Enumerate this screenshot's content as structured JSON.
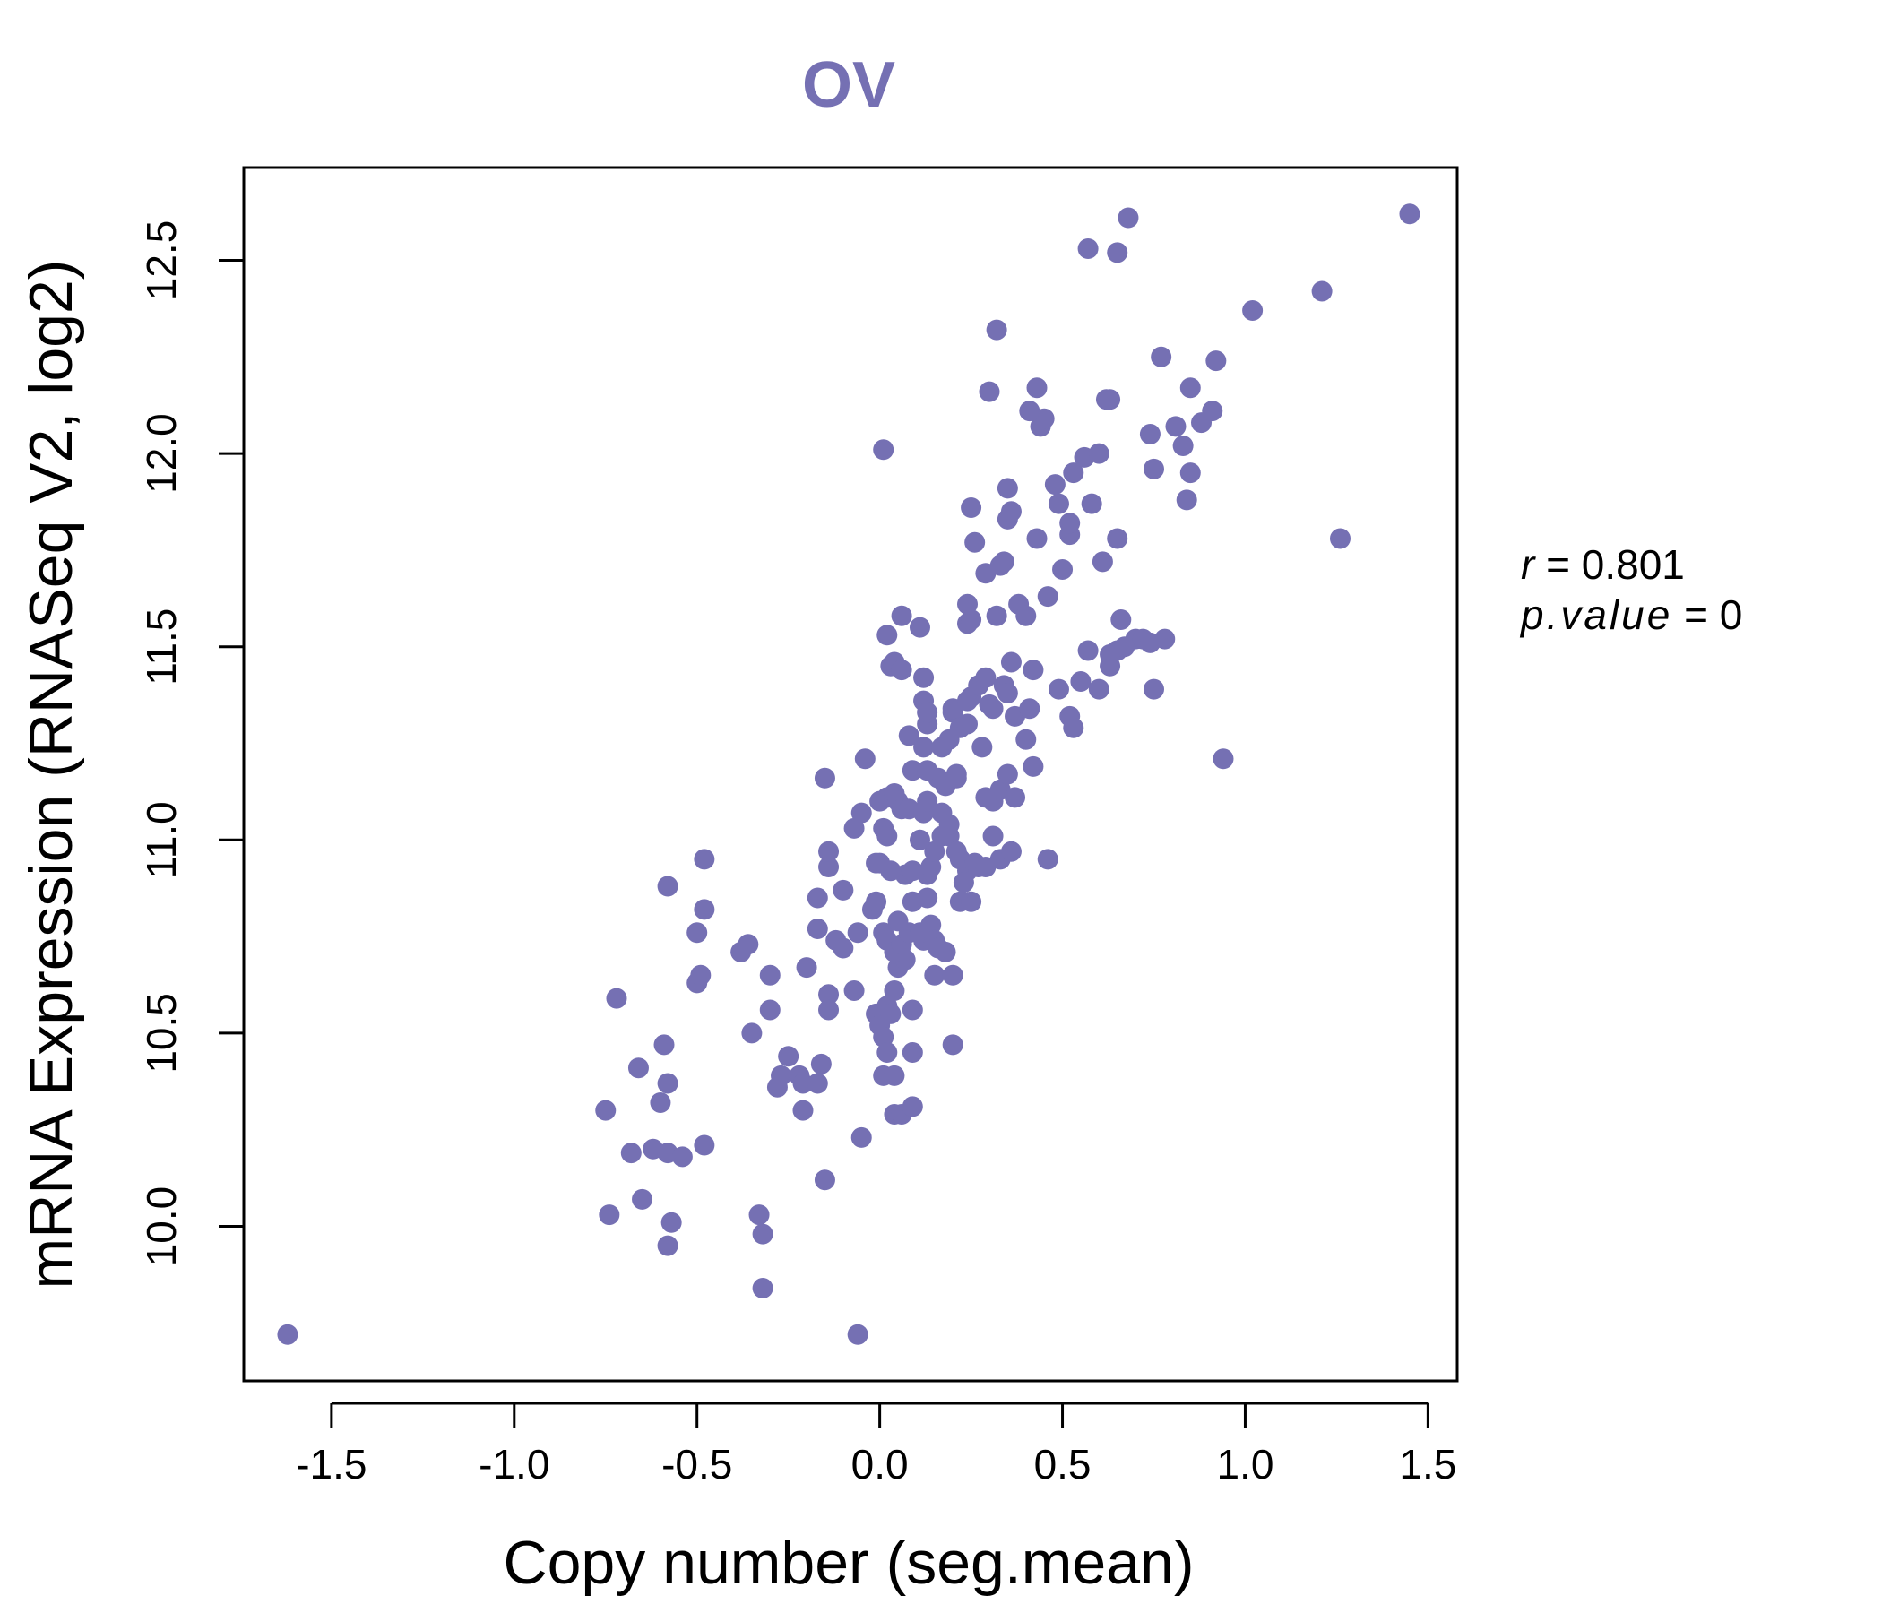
{
  "colors": {
    "point": "#7570b3",
    "title": "#7570b3",
    "axis": "#000000",
    "text": "#000000"
  },
  "chart_data": {
    "type": "scatter",
    "title": "OV",
    "xlabel": "Copy number (seg.mean)",
    "ylabel": "mRNA Expression (RNASeq V2, log2)",
    "xlim": [
      -1.74,
      1.58
    ],
    "ylim": [
      9.6,
      12.74
    ],
    "x_ticks": [
      -1.5,
      -1.0,
      -0.5,
      0.0,
      0.5,
      1.0,
      1.5
    ],
    "x_tick_labels": [
      "-1.5",
      "-1.0",
      "-0.5",
      "0.0",
      "0.5",
      "1.0",
      "1.5"
    ],
    "y_ticks": [
      10.0,
      10.5,
      11.0,
      11.5,
      12.0,
      12.5
    ],
    "y_tick_labels": [
      "10.0",
      "10.5",
      "11.0",
      "11.5",
      "12.0",
      "12.5"
    ],
    "annotation": {
      "r_label": "r",
      "r_value": "0.801",
      "p_label": "p.value",
      "p_value": "0"
    },
    "points": [
      [
        -1.62,
        9.72
      ],
      [
        -0.06,
        9.72
      ],
      [
        -0.32,
        9.84
      ],
      [
        -0.32,
        9.98
      ],
      [
        -0.33,
        10.03
      ],
      [
        -0.58,
        9.95
      ],
      [
        -0.57,
        10.01
      ],
      [
        -0.65,
        10.07
      ],
      [
        -0.74,
        10.03
      ],
      [
        -0.68,
        10.19
      ],
      [
        -0.62,
        10.2
      ],
      [
        -0.58,
        10.19
      ],
      [
        -0.54,
        10.18
      ],
      [
        -0.48,
        10.21
      ],
      [
        -0.75,
        10.3
      ],
      [
        -0.6,
        10.32
      ],
      [
        -0.58,
        10.37
      ],
      [
        -0.66,
        10.41
      ],
      [
        -0.72,
        10.59
      ],
      [
        -0.59,
        10.47
      ],
      [
        -0.5,
        10.63
      ],
      [
        -0.49,
        10.65
      ],
      [
        -0.5,
        10.76
      ],
      [
        -0.48,
        10.82
      ],
      [
        -0.58,
        10.88
      ],
      [
        -0.48,
        10.95
      ],
      [
        -0.38,
        10.71
      ],
      [
        -0.36,
        10.73
      ],
      [
        -0.3,
        10.65
      ],
      [
        -0.3,
        10.56
      ],
      [
        -0.35,
        10.5
      ],
      [
        -0.25,
        10.44
      ],
      [
        -0.27,
        10.39
      ],
      [
        -0.28,
        10.36
      ],
      [
        -0.22,
        10.39
      ],
      [
        -0.21,
        10.37
      ],
      [
        -0.17,
        10.37
      ],
      [
        -0.16,
        10.42
      ],
      [
        -0.21,
        10.3
      ],
      [
        -0.15,
        10.12
      ],
      [
        -0.05,
        10.23
      ],
      [
        -0.2,
        10.67
      ],
      [
        -0.14,
        10.6
      ],
      [
        -0.14,
        10.56
      ],
      [
        -0.07,
        10.61
      ],
      [
        -0.17,
        10.77
      ],
      [
        -0.12,
        10.74
      ],
      [
        -0.1,
        10.72
      ],
      [
        -0.06,
        10.76
      ],
      [
        -0.17,
        10.85
      ],
      [
        -0.1,
        10.87
      ],
      [
        -0.14,
        10.93
      ],
      [
        -0.14,
        10.97
      ],
      [
        -0.07,
        11.03
      ],
      [
        -0.05,
        11.07
      ],
      [
        -0.15,
        11.16
      ],
      [
        -0.04,
        11.21
      ],
      [
        -0.02,
        10.82
      ],
      [
        -0.01,
        10.84
      ],
      [
        0.01,
        10.76
      ],
      [
        0.02,
        10.74
      ],
      [
        -0.01,
        10.94
      ],
      [
        0.0,
        11.1
      ],
      [
        0.02,
        11.11
      ],
      [
        0.04,
        11.12
      ],
      [
        0.05,
        11.1
      ],
      [
        0.06,
        11.08
      ],
      [
        0.08,
        11.08
      ],
      [
        -0.01,
        10.55
      ],
      [
        0.0,
        10.52
      ],
      [
        0.02,
        10.57
      ],
      [
        0.03,
        10.55
      ],
      [
        0.04,
        10.61
      ],
      [
        0.01,
        10.49
      ],
      [
        0.02,
        10.45
      ],
      [
        0.01,
        10.39
      ],
      [
        0.04,
        10.39
      ],
      [
        0.04,
        10.29
      ],
      [
        0.06,
        10.29
      ],
      [
        0.09,
        10.31
      ],
      [
        0.09,
        10.45
      ],
      [
        0.09,
        10.56
      ],
      [
        0.05,
        10.67
      ],
      [
        0.06,
        10.7
      ],
      [
        0.07,
        10.69
      ],
      [
        0.04,
        10.71
      ],
      [
        0.06,
        10.73
      ],
      [
        0.08,
        10.76
      ],
      [
        0.05,
        10.79
      ],
      [
        0.09,
        10.84
      ],
      [
        0.07,
        10.91
      ],
      [
        0.09,
        10.92
      ],
      [
        0.03,
        10.92
      ],
      [
        0.0,
        10.94
      ],
      [
        0.01,
        11.03
      ],
      [
        0.02,
        11.01
      ],
      [
        0.12,
        10.74
      ],
      [
        0.11,
        10.76
      ],
      [
        0.14,
        10.78
      ],
      [
        0.15,
        10.74
      ],
      [
        0.16,
        10.72
      ],
      [
        0.18,
        10.71
      ],
      [
        0.15,
        10.65
      ],
      [
        0.2,
        10.65
      ],
      [
        0.2,
        10.47
      ],
      [
        0.13,
        10.85
      ],
      [
        0.13,
        10.91
      ],
      [
        0.14,
        10.93
      ],
      [
        0.15,
        10.97
      ],
      [
        0.11,
        11.0
      ],
      [
        0.17,
        11.01
      ],
      [
        0.19,
        11.01
      ],
      [
        0.17,
        11.07
      ],
      [
        0.19,
        11.04
      ],
      [
        0.21,
        10.97
      ],
      [
        0.22,
        10.95
      ],
      [
        0.24,
        10.92
      ],
      [
        0.23,
        10.89
      ],
      [
        0.22,
        10.84
      ],
      [
        0.25,
        10.84
      ],
      [
        0.26,
        10.94
      ],
      [
        0.27,
        10.93
      ],
      [
        0.29,
        10.93
      ],
      [
        0.31,
        11.01
      ],
      [
        0.33,
        10.95
      ],
      [
        0.36,
        10.97
      ],
      [
        0.46,
        10.95
      ],
      [
        0.12,
        11.07
      ],
      [
        0.13,
        11.1
      ],
      [
        0.16,
        11.16
      ],
      [
        0.18,
        11.14
      ],
      [
        0.21,
        11.17
      ],
      [
        0.21,
        11.16
      ],
      [
        0.09,
        11.18
      ],
      [
        0.13,
        11.18
      ],
      [
        0.29,
        11.11
      ],
      [
        0.31,
        11.1
      ],
      [
        0.33,
        11.13
      ],
      [
        0.35,
        11.17
      ],
      [
        0.37,
        11.11
      ],
      [
        0.42,
        11.19
      ],
      [
        0.12,
        11.24
      ],
      [
        0.13,
        11.3
      ],
      [
        0.12,
        11.36
      ],
      [
        0.13,
        11.33
      ],
      [
        0.17,
        11.24
      ],
      [
        0.19,
        11.26
      ],
      [
        0.2,
        11.33
      ],
      [
        0.2,
        11.34
      ],
      [
        0.22,
        11.29
      ],
      [
        0.24,
        11.3
      ],
      [
        0.24,
        11.36
      ],
      [
        0.25,
        11.37
      ],
      [
        0.27,
        11.4
      ],
      [
        0.28,
        11.24
      ],
      [
        0.29,
        11.42
      ],
      [
        0.3,
        11.35
      ],
      [
        0.31,
        11.34
      ],
      [
        0.34,
        11.4
      ],
      [
        0.35,
        11.38
      ],
      [
        0.37,
        11.32
      ],
      [
        0.4,
        11.26
      ],
      [
        0.41,
        11.34
      ],
      [
        0.42,
        11.44
      ],
      [
        0.36,
        11.46
      ],
      [
        0.03,
        11.45
      ],
      [
        0.04,
        11.46
      ],
      [
        0.06,
        11.44
      ],
      [
        0.08,
        11.27
      ],
      [
        0.12,
        11.42
      ],
      [
        0.02,
        11.53
      ],
      [
        0.06,
        11.58
      ],
      [
        0.11,
        11.55
      ],
      [
        0.24,
        11.56
      ],
      [
        0.25,
        11.57
      ],
      [
        0.24,
        11.61
      ],
      [
        0.32,
        11.58
      ],
      [
        0.38,
        11.61
      ],
      [
        0.4,
        11.58
      ],
      [
        0.29,
        11.69
      ],
      [
        0.33,
        11.71
      ],
      [
        0.34,
        11.72
      ],
      [
        0.26,
        11.77
      ],
      [
        0.35,
        11.83
      ],
      [
        0.36,
        11.85
      ],
      [
        0.35,
        11.91
      ],
      [
        0.25,
        11.86
      ],
      [
        0.43,
        11.78
      ],
      [
        0.46,
        11.63
      ],
      [
        0.5,
        11.7
      ],
      [
        0.49,
        11.87
      ],
      [
        0.52,
        11.79
      ],
      [
        0.52,
        11.82
      ],
      [
        0.53,
        11.95
      ],
      [
        0.48,
        11.92
      ],
      [
        0.58,
        11.87
      ],
      [
        0.61,
        11.72
      ],
      [
        0.65,
        11.78
      ],
      [
        0.56,
        11.99
      ],
      [
        0.6,
        12.0
      ],
      [
        0.49,
        11.39
      ],
      [
        0.52,
        11.32
      ],
      [
        0.53,
        11.29
      ],
      [
        0.55,
        11.41
      ],
      [
        0.57,
        11.49
      ],
      [
        0.6,
        11.39
      ],
      [
        0.63,
        11.45
      ],
      [
        0.65,
        11.49
      ],
      [
        0.66,
        11.57
      ],
      [
        0.63,
        11.48
      ],
      [
        0.67,
        11.5
      ],
      [
        0.7,
        11.52
      ],
      [
        0.72,
        11.52
      ],
      [
        0.74,
        11.51
      ],
      [
        0.78,
        11.52
      ],
      [
        0.75,
        11.39
      ],
      [
        0.44,
        12.07
      ],
      [
        0.45,
        12.09
      ],
      [
        0.41,
        12.11
      ],
      [
        0.43,
        12.17
      ],
      [
        0.3,
        12.16
      ],
      [
        0.32,
        12.32
      ],
      [
        0.62,
        12.14
      ],
      [
        0.63,
        12.14
      ],
      [
        0.57,
        12.53
      ],
      [
        0.65,
        12.52
      ],
      [
        0.68,
        12.61
      ],
      [
        0.74,
        12.05
      ],
      [
        0.75,
        11.96
      ],
      [
        0.77,
        12.25
      ],
      [
        0.81,
        12.07
      ],
      [
        0.83,
        12.02
      ],
      [
        0.85,
        11.95
      ],
      [
        0.84,
        11.88
      ],
      [
        0.85,
        12.17
      ],
      [
        0.88,
        12.08
      ],
      [
        0.91,
        12.11
      ],
      [
        0.92,
        12.24
      ],
      [
        0.94,
        11.21
      ],
      [
        1.02,
        12.37
      ],
      [
        1.21,
        12.42
      ],
      [
        1.26,
        11.78
      ],
      [
        1.45,
        12.62
      ],
      [
        0.01,
        12.01
      ]
    ]
  }
}
